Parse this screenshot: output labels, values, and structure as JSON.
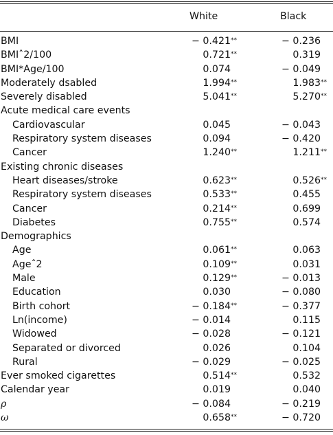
{
  "table": {
    "columns": [
      "White",
      "Black"
    ],
    "rows": [
      {
        "label": "BMI",
        "indent": false,
        "white": "− 0.421",
        "white_sig": "**",
        "black": "− 0.236",
        "black_sig": ""
      },
      {
        "label": "BMIˆ2/100",
        "indent": false,
        "white": "0.721",
        "white_sig": "**",
        "black": "0.319",
        "black_sig": ""
      },
      {
        "label": "BMI*Age/100",
        "indent": false,
        "white": "0.074",
        "white_sig": "",
        "black": "− 0.049",
        "black_sig": ""
      },
      {
        "label": "Moderately dsabled",
        "indent": false,
        "white": "1.994",
        "white_sig": "**",
        "black": "1.983",
        "black_sig": "**"
      },
      {
        "label": "Severely disabled",
        "indent": false,
        "white": "5.041",
        "white_sig": "**",
        "black": "5.270",
        "black_sig": "**"
      },
      {
        "label": "Acute medical care events",
        "indent": false,
        "white": "",
        "white_sig": "",
        "black": "",
        "black_sig": ""
      },
      {
        "label": "Cardiovascular",
        "indent": true,
        "white": "0.045",
        "white_sig": "",
        "black": "− 0.043",
        "black_sig": ""
      },
      {
        "label": "Respiratory system diseases",
        "indent": true,
        "white": "0.094",
        "white_sig": "",
        "black": "− 0.420",
        "black_sig": ""
      },
      {
        "label": "Cancer",
        "indent": true,
        "white": "1.240",
        "white_sig": "**",
        "black": "1.211",
        "black_sig": "**"
      },
      {
        "label": "Existing chronic diseases",
        "indent": false,
        "white": "",
        "white_sig": "",
        "black": "",
        "black_sig": ""
      },
      {
        "label": "Heart diseases/stroke",
        "indent": true,
        "white": "0.623",
        "white_sig": "**",
        "black": "0.526",
        "black_sig": "**"
      },
      {
        "label": "Respiratory system diseases",
        "indent": true,
        "white": "0.533",
        "white_sig": "**",
        "black": "0.455",
        "black_sig": ""
      },
      {
        "label": "Cancer",
        "indent": true,
        "white": "0.214",
        "white_sig": "**",
        "black": "0.699",
        "black_sig": ""
      },
      {
        "label": "Diabetes",
        "indent": true,
        "white": "0.755",
        "white_sig": "**",
        "black": "0.574",
        "black_sig": ""
      },
      {
        "label": "Demographics",
        "indent": false,
        "white": "",
        "white_sig": "",
        "black": "",
        "black_sig": ""
      },
      {
        "label": "Age",
        "indent": true,
        "white": "0.061",
        "white_sig": "**",
        "black": "0.063",
        "black_sig": ""
      },
      {
        "label": "Ageˆ2",
        "indent": true,
        "white": "0.109",
        "white_sig": "**",
        "black": "0.031",
        "black_sig": ""
      },
      {
        "label": "Male",
        "indent": true,
        "white": "0.129",
        "white_sig": "**",
        "black": "− 0.013",
        "black_sig": ""
      },
      {
        "label": "Education",
        "indent": true,
        "white": "0.030",
        "white_sig": "",
        "black": "− 0.080",
        "black_sig": ""
      },
      {
        "label": "Birth cohort",
        "indent": true,
        "white": "− 0.184",
        "white_sig": "**",
        "black": "− 0.377",
        "black_sig": ""
      },
      {
        "label": "Ln(income)",
        "indent": true,
        "white": "− 0.014",
        "white_sig": "",
        "black": "0.115",
        "black_sig": ""
      },
      {
        "label": "Widowed",
        "indent": true,
        "white": "− 0.028",
        "white_sig": "",
        "black": "− 0.121",
        "black_sig": ""
      },
      {
        "label": "Separated or divorced",
        "indent": true,
        "white": "0.026",
        "white_sig": "",
        "black": "0.104",
        "black_sig": ""
      },
      {
        "label": "Rural",
        "indent": true,
        "white": "− 0.029",
        "white_sig": "",
        "black": "− 0.025",
        "black_sig": ""
      },
      {
        "label": "Ever smoked cigarettes",
        "indent": false,
        "white": "0.514",
        "white_sig": "**",
        "black": "0.532",
        "black_sig": ""
      },
      {
        "label": "Calendar year",
        "indent": false,
        "white": "0.019",
        "white_sig": "",
        "black": "0.040",
        "black_sig": ""
      },
      {
        "label": "ρ",
        "indent": false,
        "greek": true,
        "white": "− 0.084",
        "white_sig": "",
        "black": "− 0.219",
        "black_sig": ""
      },
      {
        "label": "ω",
        "indent": false,
        "greek": true,
        "white": "0.658",
        "white_sig": "**",
        "black": "− 0.720",
        "black_sig": ""
      }
    ]
  }
}
